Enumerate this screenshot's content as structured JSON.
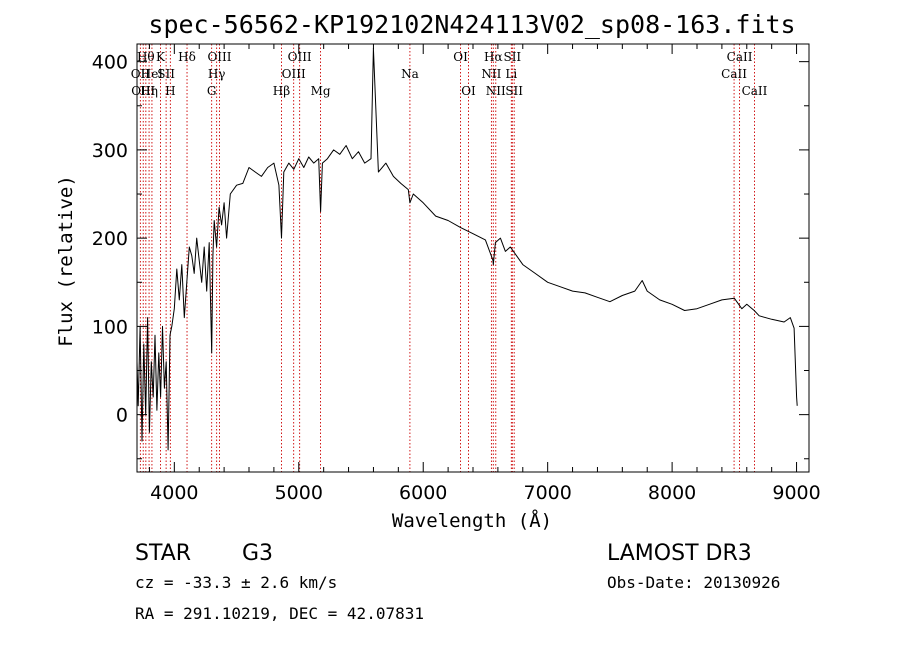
{
  "chart_data": {
    "type": "line",
    "title": "spec-56562-KP192102N424113V02_sp08-163.fits",
    "xlabel": "Wavelength (Å)",
    "ylabel": "Flux (relative)",
    "xlim": [
      3700,
      9100
    ],
    "ylim": [
      -65,
      420
    ],
    "xticks": [
      4000,
      5000,
      6000,
      7000,
      8000,
      9000
    ],
    "yticks": [
      0,
      100,
      200,
      300,
      400
    ],
    "series": [
      {
        "name": "flux",
        "x": [
          3700,
          3710,
          3725,
          3740,
          3755,
          3770,
          3785,
          3800,
          3815,
          3830,
          3845,
          3860,
          3875,
          3890,
          3905,
          3920,
          3935,
          3950,
          3965,
          3980,
          4000,
          4020,
          4040,
          4060,
          4080,
          4100,
          4120,
          4140,
          4160,
          4180,
          4200,
          4220,
          4240,
          4260,
          4280,
          4300,
          4310,
          4320,
          4340,
          4360,
          4380,
          4400,
          4420,
          4450,
          4500,
          4550,
          4600,
          4650,
          4700,
          4750,
          4800,
          4840,
          4861,
          4880,
          4920,
          4960,
          5000,
          5040,
          5080,
          5120,
          5160,
          5175,
          5190,
          5230,
          5280,
          5330,
          5380,
          5430,
          5480,
          5530,
          5580,
          5600,
          5640,
          5700,
          5760,
          5820,
          5880,
          5893,
          5920,
          6000,
          6100,
          6200,
          6300,
          6400,
          6500,
          6560,
          6563,
          6580,
          6620,
          6660,
          6700,
          6750,
          6800,
          6900,
          7000,
          7100,
          7200,
          7300,
          7400,
          7500,
          7600,
          7700,
          7760,
          7800,
          7900,
          8000,
          8100,
          8200,
          8300,
          8400,
          8500,
          8560,
          8600,
          8660,
          8700,
          8800,
          8900,
          8950,
          8980,
          9000,
          9005
        ],
        "y": [
          60,
          10,
          100,
          -30,
          80,
          0,
          110,
          -20,
          60,
          20,
          90,
          5,
          70,
          20,
          100,
          30,
          60,
          -40,
          90,
          100,
          120,
          165,
          130,
          170,
          110,
          150,
          190,
          180,
          160,
          200,
          175,
          150,
          190,
          140,
          195,
          70,
          180,
          220,
          190,
          235,
          215,
          240,
          200,
          250,
          260,
          262,
          280,
          275,
          270,
          280,
          285,
          260,
          200,
          275,
          285,
          278,
          290,
          280,
          292,
          285,
          290,
          230,
          285,
          290,
          300,
          295,
          305,
          290,
          298,
          285,
          290,
          415,
          275,
          285,
          270,
          262,
          255,
          240,
          250,
          240,
          225,
          220,
          212,
          205,
          198,
          175,
          170,
          195,
          200,
          185,
          190,
          180,
          170,
          160,
          150,
          145,
          140,
          138,
          133,
          128,
          135,
          140,
          152,
          140,
          130,
          125,
          118,
          120,
          125,
          130,
          132,
          120,
          125,
          118,
          112,
          108,
          105,
          110,
          98,
          20,
          10
        ]
      }
    ],
    "emission_lines": [
      {
        "wavelength": 3727,
        "label": "OII",
        "row": 1
      },
      {
        "wavelength": 3750,
        "label": "OIII",
        "row": 2
      },
      {
        "wavelength": 3771,
        "label": "Hθ",
        "row": 0
      },
      {
        "wavelength": 3797,
        "label": "Hη",
        "row": 2
      },
      {
        "wavelength": 3820,
        "label": "HeI",
        "row": 1
      },
      {
        "wavelength": 3889,
        "label": "K",
        "row": 0
      },
      {
        "wavelength": 3934,
        "label": "SII",
        "row": 1
      },
      {
        "wavelength": 3968,
        "label": "H",
        "row": 2
      },
      {
        "wavelength": 4102,
        "label": "Hδ",
        "row": 0
      },
      {
        "wavelength": 4300,
        "label": "G",
        "row": 2
      },
      {
        "wavelength": 4340,
        "label": "Hγ",
        "row": 1
      },
      {
        "wavelength": 4363,
        "label": "OIII",
        "row": 0
      },
      {
        "wavelength": 4861,
        "label": "Hβ",
        "row": 2
      },
      {
        "wavelength": 4959,
        "label": "OIII",
        "row": 1
      },
      {
        "wavelength": 5007,
        "label": "OIII",
        "row": 0
      },
      {
        "wavelength": 5175,
        "label": "Mg",
        "row": 2
      },
      {
        "wavelength": 5893,
        "label": "Na",
        "row": 1
      },
      {
        "wavelength": 6300,
        "label": "OI",
        "row": 0
      },
      {
        "wavelength": 6364,
        "label": "OI",
        "row": 2
      },
      {
        "wavelength": 6548,
        "label": "NII",
        "row": 1
      },
      {
        "wavelength": 6563,
        "label": "Hα",
        "row": 0
      },
      {
        "wavelength": 6583,
        "label": "NII",
        "row": 2
      },
      {
        "wavelength": 6708,
        "label": "Li",
        "row": 1
      },
      {
        "wavelength": 6716,
        "label": "SII",
        "row": 0
      },
      {
        "wavelength": 6731,
        "label": "SII",
        "row": 2
      },
      {
        "wavelength": 8498,
        "label": "CaII",
        "row": 1
      },
      {
        "wavelength": 8542,
        "label": "CaII",
        "row": 0
      },
      {
        "wavelength": 8662,
        "label": "CaII",
        "row": 2
      }
    ]
  },
  "info": {
    "object_class": "STAR",
    "subclass": "G3",
    "survey": "LAMOST DR3",
    "redshift_line": "cz = -33.3 ± 2.6 km/s",
    "obs_date_line": "Obs-Date: 20130926",
    "coords_line": "RA = 291.10219, DEC =  42.07831"
  },
  "colors": {
    "spectrum": "#000000",
    "line_markers": "#cc0000",
    "axes": "#000000"
  }
}
